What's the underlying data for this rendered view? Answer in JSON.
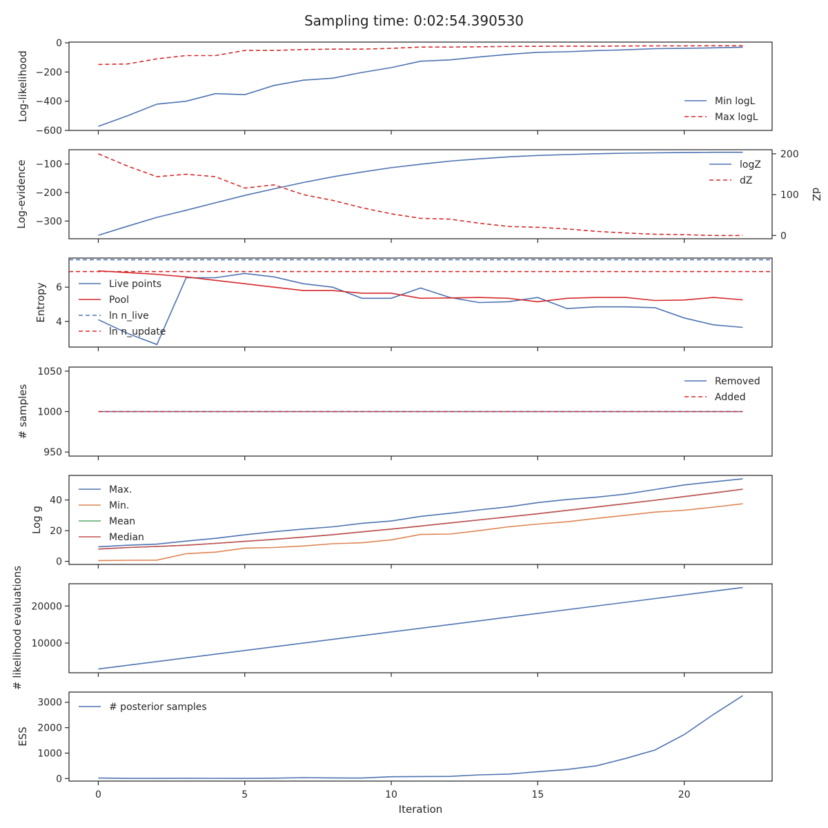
{
  "figure": {
    "title": "Sampling time: 0:02:54.390530"
  },
  "colors": {
    "blue": "#4c72b0",
    "red": "#d62728",
    "orange": "#dd8452",
    "green": "#55a868",
    "brownred": "#c44e52",
    "axis": "#262626"
  },
  "chart_data": [
    {
      "type": "line",
      "ylabel": "Log-likelihood",
      "xlim": [
        -1,
        23
      ],
      "ylim": [
        -600,
        5
      ],
      "yticks": [
        0,
        -200,
        -400,
        -600
      ],
      "ytick_labels": [
        "0",
        "−200",
        "−400",
        "−600"
      ],
      "legend": "right",
      "series": [
        {
          "name": "Min logL",
          "color": "#4c72b0",
          "dash": false,
          "x": [
            0,
            1,
            2,
            3,
            4,
            5,
            6,
            7,
            8,
            9,
            10,
            11,
            12,
            13,
            14,
            15,
            16,
            17,
            18,
            19,
            20,
            21,
            22
          ],
          "values": [
            -572,
            -500,
            -420,
            -400,
            -348,
            -355,
            -292,
            -256,
            -242,
            -203,
            -170,
            -126,
            -117,
            -97,
            -79,
            -65,
            -61,
            -53,
            -48,
            -40,
            -38,
            -34,
            -30
          ]
        },
        {
          "name": "Max logL",
          "color": "#d62728",
          "dash": true,
          "x": [
            0,
            1,
            2,
            3,
            4,
            5,
            6,
            7,
            8,
            9,
            10,
            11,
            12,
            13,
            14,
            15,
            16,
            17,
            18,
            19,
            20,
            21,
            22
          ],
          "values": [
            -148,
            -145,
            -110,
            -87,
            -87,
            -52,
            -52,
            -46,
            -43,
            -43,
            -38,
            -29,
            -29,
            -27,
            -25,
            -24,
            -23,
            -23,
            -22,
            -21,
            -21,
            -20,
            -20
          ]
        }
      ]
    },
    {
      "type": "line",
      "ylabel": "Log-evidence",
      "y2label": "dZ",
      "xlim": [
        -1,
        23
      ],
      "ylim": [
        -362,
        -50
      ],
      "y2lim": [
        -8,
        210
      ],
      "yticks": [
        -100,
        -200,
        -300
      ],
      "ytick_labels": [
        "−100",
        "−200",
        "−300"
      ],
      "y2ticks": [
        200,
        100,
        0
      ],
      "y2tick_labels": [
        "200",
        "100",
        "0"
      ],
      "legend": "right",
      "series": [
        {
          "name": "logZ",
          "color": "#4c72b0",
          "dash": false,
          "axis": "left",
          "x": [
            0,
            1,
            2,
            3,
            4,
            5,
            6,
            7,
            8,
            9,
            10,
            11,
            12,
            13,
            14,
            15,
            16,
            17,
            18,
            19,
            20,
            21,
            22
          ],
          "values": [
            -350,
            -318,
            -287,
            -262,
            -236,
            -210,
            -187,
            -165,
            -145,
            -128,
            -113,
            -101,
            -90,
            -82,
            -75,
            -70,
            -67,
            -64,
            -62,
            -61,
            -60,
            -59,
            -59
          ]
        },
        {
          "name": "dZ",
          "color": "#d62728",
          "dash": true,
          "axis": "right",
          "x": [
            0,
            1,
            2,
            3,
            4,
            5,
            6,
            7,
            8,
            9,
            10,
            11,
            12,
            13,
            14,
            15,
            16,
            17,
            18,
            19,
            20,
            21,
            22
          ],
          "values": [
            200,
            170,
            144,
            150,
            144,
            116,
            124,
            100,
            86,
            68,
            53,
            42,
            40,
            30,
            22,
            20,
            16,
            10,
            6,
            3,
            2,
            0,
            0
          ]
        }
      ]
    },
    {
      "type": "line",
      "ylabel": "Entropy",
      "xlim": [
        -1,
        23
      ],
      "ylim": [
        2.5,
        7.7
      ],
      "yticks": [
        6,
        4
      ],
      "ytick_labels": [
        "6",
        "4"
      ],
      "legend": "left",
      "series": [
        {
          "name": "Live points",
          "color": "#4c72b0",
          "dash": false,
          "x": [
            0,
            1,
            2,
            3,
            4,
            5,
            6,
            7,
            8,
            9,
            10,
            11,
            12,
            13,
            14,
            15,
            16,
            17,
            18,
            19,
            20,
            21,
            22
          ],
          "values": [
            4.1,
            3.3,
            2.65,
            6.55,
            6.55,
            6.8,
            6.6,
            6.2,
            6.0,
            5.35,
            5.35,
            5.95,
            5.4,
            5.1,
            5.15,
            5.4,
            4.75,
            4.85,
            4.85,
            4.8,
            4.2,
            3.8,
            3.65
          ]
        },
        {
          "name": "Pool",
          "color": "#d62728",
          "dash": false,
          "x": [
            0,
            1,
            2,
            3,
            4,
            5,
            6,
            7,
            8,
            9,
            10,
            11,
            12,
            13,
            14,
            15,
            16,
            17,
            18,
            19,
            20,
            21,
            22
          ],
          "values": [
            6.95,
            6.85,
            6.75,
            6.6,
            6.4,
            6.2,
            6.0,
            5.8,
            5.8,
            5.65,
            5.65,
            5.35,
            5.37,
            5.4,
            5.35,
            5.15,
            5.35,
            5.4,
            5.4,
            5.22,
            5.25,
            5.4,
            5.26
          ]
        },
        {
          "name": "ln n_live",
          "label": "ln n_live",
          "color": "#4c72b0",
          "dash": true,
          "hline": 7.6
        },
        {
          "name": "ln n_update",
          "label": "ln n_update",
          "color": "#d62728",
          "dash": true,
          "hline": 6.91
        }
      ]
    },
    {
      "type": "line",
      "ylabel": "# samples",
      "xlim": [
        -1,
        23
      ],
      "ylim": [
        945,
        1055
      ],
      "yticks": [
        1050,
        1000,
        950
      ],
      "ytick_labels": [
        "1050",
        "1000",
        "950"
      ],
      "legend": "right",
      "series": [
        {
          "name": "Removed",
          "color": "#4c72b0",
          "dash": false,
          "x": [
            0,
            22
          ],
          "values": [
            1000,
            1000
          ]
        },
        {
          "name": "Added",
          "color": "#d62728",
          "dash": true,
          "x": [
            0,
            22
          ],
          "values": [
            1000,
            1000
          ]
        }
      ]
    },
    {
      "type": "line",
      "ylabel": "Log g",
      "xlim": [
        -1,
        23
      ],
      "ylim": [
        -2,
        56
      ],
      "yticks": [
        40,
        20,
        0
      ],
      "ytick_labels": [
        "40",
        "20",
        "0"
      ],
      "legend": "left",
      "series": [
        {
          "name": "Max.",
          "color": "#4c72b0",
          "dash": false,
          "x": [
            0,
            1,
            2,
            3,
            4,
            5,
            6,
            7,
            8,
            9,
            10,
            11,
            12,
            13,
            14,
            15,
            16,
            17,
            18,
            19,
            20,
            21,
            22
          ],
          "values": [
            9.5,
            10.5,
            11.2,
            13.2,
            15,
            17.3,
            19.3,
            21,
            22.5,
            24.8,
            26.3,
            29.3,
            31.3,
            33.5,
            35.5,
            38.3,
            40.3,
            41.8,
            43.8,
            46.8,
            49.8,
            51.8,
            53.8
          ]
        },
        {
          "name": "Min.",
          "color": "#dd8452",
          "dash": false,
          "x": [
            0,
            1,
            2,
            3,
            4,
            5,
            6,
            7,
            8,
            9,
            10,
            11,
            12,
            13,
            14,
            15,
            16,
            17,
            18,
            19,
            20,
            21,
            22
          ],
          "values": [
            0.5,
            0.7,
            0.8,
            5,
            6,
            8.6,
            9,
            10,
            11.5,
            12.1,
            14,
            17.5,
            17.8,
            20,
            22.5,
            24.3,
            25.8,
            28,
            30,
            32.1,
            33.3,
            35.3,
            37.5
          ]
        },
        {
          "name": "Mean",
          "color": "#55a868",
          "dash": false,
          "x": [
            0,
            1,
            2,
            3,
            4,
            5,
            6,
            7,
            8,
            9,
            10,
            11,
            12,
            13,
            14,
            15,
            16,
            17,
            18,
            19,
            20,
            21,
            22
          ],
          "values": [
            8,
            9,
            9.7,
            10.5,
            11.7,
            13,
            14.3,
            15.8,
            17.4,
            19.2,
            21,
            23,
            25,
            27,
            29,
            31,
            33.2,
            35.4,
            37.6,
            39.8,
            42.2,
            44.6,
            47
          ]
        },
        {
          "name": "Median",
          "color": "#c44e52",
          "dash": false,
          "x": [
            0,
            1,
            2,
            3,
            4,
            5,
            6,
            7,
            8,
            9,
            10,
            11,
            12,
            13,
            14,
            15,
            16,
            17,
            18,
            19,
            20,
            21,
            22
          ],
          "values": [
            8,
            9,
            9.7,
            10.5,
            11.7,
            13,
            14.3,
            15.8,
            17.4,
            19.2,
            21,
            23,
            25,
            27,
            29,
            31,
            33.2,
            35.4,
            37.6,
            39.8,
            42.2,
            44.6,
            47
          ]
        }
      ]
    },
    {
      "type": "line",
      "ylabel": "# likelihood evaluations",
      "xlim": [
        -1,
        23
      ],
      "ylim": [
        2000,
        26000
      ],
      "yticks": [
        20000,
        10000
      ],
      "ytick_labels": [
        "20000",
        "10000"
      ],
      "legend": "none",
      "series": [
        {
          "color": "#4c72b0",
          "dash": false,
          "x": [
            0,
            22
          ],
          "values": [
            3000,
            25000
          ]
        }
      ]
    },
    {
      "type": "line",
      "ylabel": "ESS",
      "xlabel": "Iteration",
      "xlim": [
        -1,
        23
      ],
      "ylim": [
        -100,
        3400
      ],
      "yticks": [
        3000,
        2000,
        1000,
        0
      ],
      "ytick_labels": [
        "3000",
        "2000",
        "1000",
        "0"
      ],
      "xticks": [
        0,
        5,
        10,
        15,
        20
      ],
      "xtick_labels": [
        "0",
        "5",
        "10",
        "15",
        "20"
      ],
      "legend": "left",
      "series": [
        {
          "name": "# posterior samples",
          "color": "#4c72b0",
          "dash": false,
          "x": [
            0,
            1,
            2,
            3,
            4,
            5,
            6,
            7,
            8,
            9,
            10,
            11,
            12,
            13,
            14,
            15,
            16,
            17,
            18,
            19,
            20,
            21,
            22
          ],
          "values": [
            20,
            5,
            5,
            10,
            8,
            5,
            15,
            35,
            25,
            20,
            70,
            80,
            85,
            145,
            175,
            270,
            355,
            500,
            790,
            1120,
            1730,
            2520,
            3260
          ]
        }
      ]
    }
  ]
}
